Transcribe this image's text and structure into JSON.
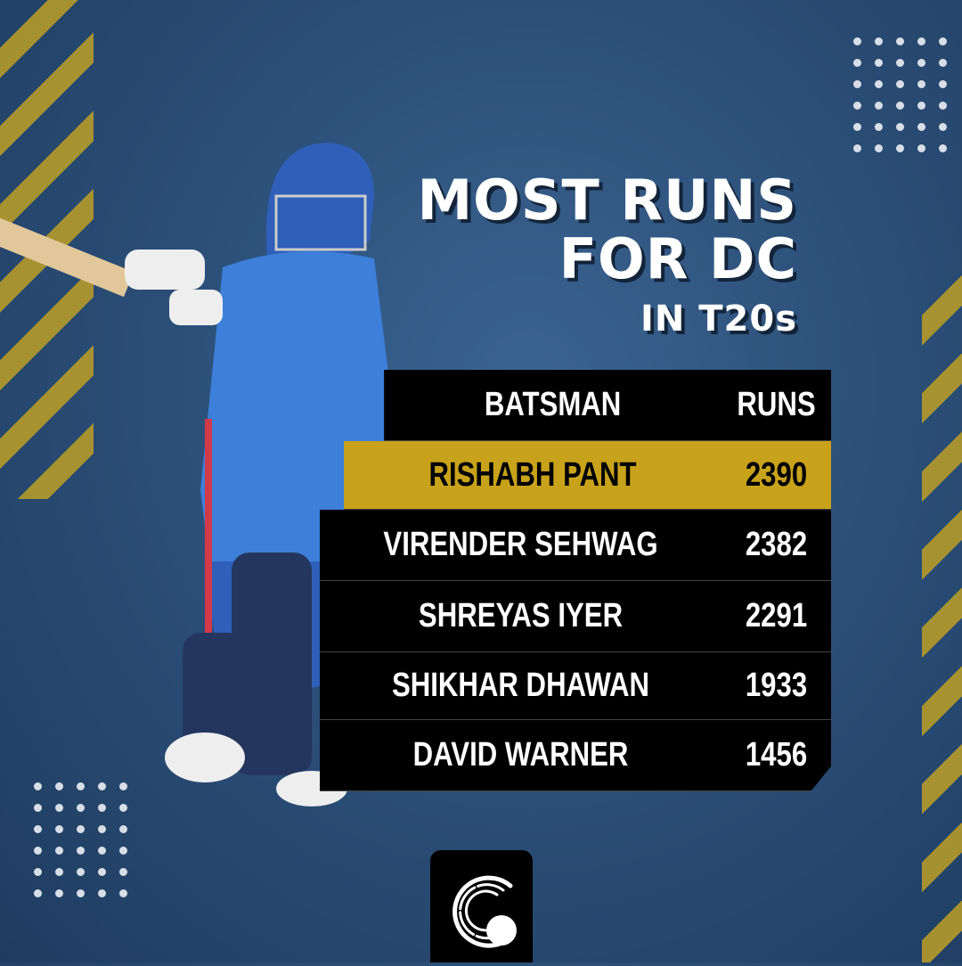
{
  "title": {
    "line1": "MOST RUNS",
    "line2": "FOR DC",
    "line3": "IN T20s"
  },
  "table": {
    "headers": {
      "batsman": "BATSMAN",
      "runs": "RUNS"
    },
    "rows": [
      {
        "batsman": "RISHABH PANT",
        "runs": "2390",
        "highlighted": true
      },
      {
        "batsman": "VIRENDER SEHWAG",
        "runs": "2382"
      },
      {
        "batsman": "SHREYAS IYER",
        "runs": "2291"
      },
      {
        "batsman": "SHIKHAR DHAWAN",
        "runs": "1933"
      },
      {
        "batsman": "DAVID WARNER",
        "runs": "1456"
      }
    ]
  },
  "colors": {
    "background": "#2c5079",
    "accent_gold": "#c8a21a",
    "table_bg": "#000000"
  },
  "logo": {
    "icon": "cricket-ball-logo-icon"
  }
}
